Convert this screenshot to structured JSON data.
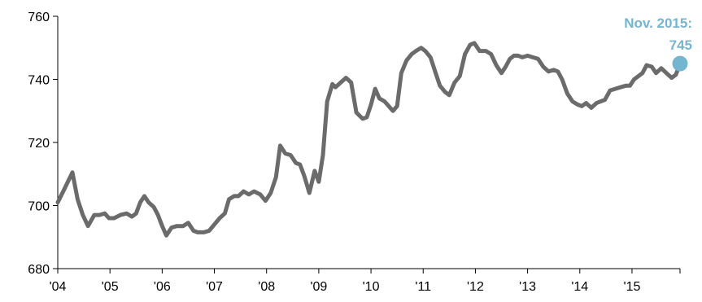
{
  "chart_data": {
    "type": "line",
    "title": "",
    "xlabel": "",
    "ylabel": "",
    "ylim": [
      680,
      760
    ],
    "yticks": [
      680,
      700,
      720,
      740,
      760
    ],
    "xlim": [
      2004.0,
      2015.92
    ],
    "xticks": [
      {
        "value": 2004,
        "label": "'04"
      },
      {
        "value": 2005,
        "label": "'05"
      },
      {
        "value": 2006,
        "label": "'06"
      },
      {
        "value": 2007,
        "label": "'07"
      },
      {
        "value": 2008,
        "label": "'08"
      },
      {
        "value": 2009,
        "label": "'09"
      },
      {
        "value": 2010,
        "label": "'10"
      },
      {
        "value": 2011,
        "label": "'11"
      },
      {
        "value": 2012,
        "label": "'12"
      },
      {
        "value": 2013,
        "label": "'13"
      },
      {
        "value": 2014,
        "label": "'14"
      },
      {
        "value": 2015,
        "label": "'15"
      }
    ],
    "grid": false,
    "legend": "none",
    "series": [
      {
        "color": "#6b6b6b",
        "x": [
          2004.0,
          2004.12,
          2004.28,
          2004.38,
          2004.48,
          2004.58,
          2004.7,
          2004.8,
          2004.9,
          2004.98,
          2005.08,
          2005.2,
          2005.32,
          2005.42,
          2005.5,
          2005.58,
          2005.66,
          2005.74,
          2005.84,
          2005.92,
          2006.0,
          2006.08,
          2006.18,
          2006.28,
          2006.4,
          2006.5,
          2006.6,
          2006.68,
          2006.8,
          2006.9,
          2007.0,
          2007.1,
          2007.2,
          2007.28,
          2007.38,
          2007.46,
          2007.56,
          2007.66,
          2007.76,
          2007.88,
          2007.98,
          2008.08,
          2008.18,
          2008.26,
          2008.36,
          2008.46,
          2008.56,
          2008.64,
          2008.72,
          2008.82,
          2008.92,
          2009.0,
          2009.08,
          2009.16,
          2009.26,
          2009.32,
          2009.42,
          2009.52,
          2009.62,
          2009.72,
          2009.84,
          2009.92,
          2010.0,
          2010.08,
          2010.16,
          2010.26,
          2010.34,
          2010.42,
          2010.5,
          2010.58,
          2010.68,
          2010.78,
          2010.86,
          2010.96,
          2011.04,
          2011.14,
          2011.24,
          2011.32,
          2011.42,
          2011.5,
          2011.6,
          2011.7,
          2011.8,
          2011.9,
          2011.98,
          2012.08,
          2012.2,
          2012.3,
          2012.4,
          2012.5,
          2012.58,
          2012.66,
          2012.74,
          2012.82,
          2012.9,
          2013.0,
          2013.1,
          2013.2,
          2013.3,
          2013.4,
          2013.5,
          2013.58,
          2013.66,
          2013.76,
          2013.86,
          2013.96,
          2014.04,
          2014.12,
          2014.22,
          2014.32,
          2014.4,
          2014.48,
          2014.58,
          2014.68,
          2014.78,
          2014.88,
          2014.96,
          2015.04,
          2015.12,
          2015.2,
          2015.28,
          2015.38,
          2015.46,
          2015.56,
          2015.66,
          2015.76,
          2015.84,
          2015.92
        ],
        "y": [
          701,
          705,
          710.5,
          702,
          697,
          693.5,
          697,
          697,
          697.5,
          696,
          696,
          697,
          697.5,
          696.5,
          697.5,
          701,
          703,
          701,
          699.5,
          697,
          693.5,
          690.5,
          693,
          693.5,
          693.5,
          694.5,
          692,
          691.5,
          691.5,
          692,
          694,
          696,
          697.5,
          702,
          703,
          703,
          704.5,
          703.5,
          704.5,
          703.5,
          701.5,
          704,
          709,
          719,
          716.5,
          716,
          713.5,
          713,
          709.5,
          704,
          711,
          707.5,
          716,
          733,
          738.5,
          737.5,
          739,
          740.5,
          739,
          729.5,
          727.5,
          728,
          732,
          737,
          734,
          733,
          731.5,
          730,
          731.5,
          742,
          746,
          748,
          749,
          750,
          749,
          747,
          742,
          738,
          736,
          735,
          739,
          741,
          748,
          751,
          751.5,
          749,
          749,
          748,
          744.5,
          742,
          744,
          746.5,
          747.5,
          747.5,
          747,
          747.5,
          747,
          746.5,
          744,
          742.5,
          743,
          742.5,
          740,
          735.5,
          733,
          732,
          731.5,
          732.5,
          731,
          732.5,
          733,
          733.5,
          736.5,
          737,
          737.5,
          738,
          738,
          740,
          741,
          742,
          744.5,
          744,
          742,
          743.5,
          742,
          740.5,
          741.5,
          745
        ]
      }
    ],
    "annotation": {
      "line1": "Nov. 2015:",
      "line2": "745",
      "x": 2015.92,
      "y": 745,
      "color": "#74b6cf"
    }
  }
}
